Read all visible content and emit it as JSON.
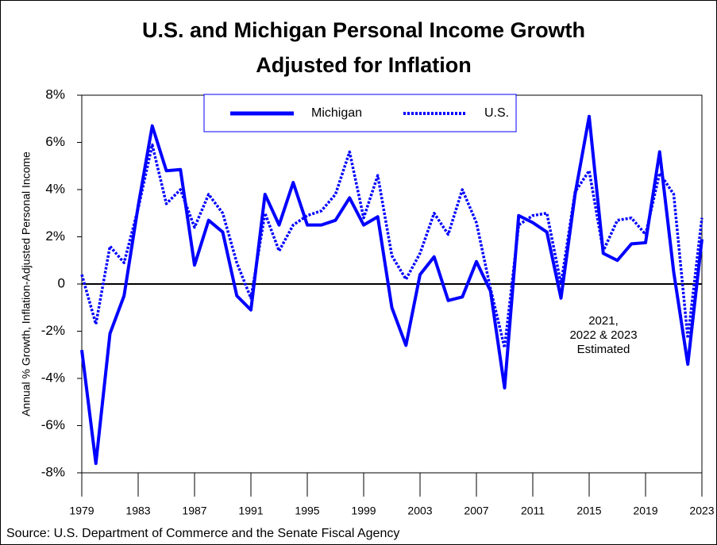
{
  "chart_data": {
    "type": "line",
    "title": "U.S. and Michigan Personal Income Growth",
    "subtitle": "Adjusted for Inflation",
    "y_label": "Annual % Growth, Inflation-Adjusted Personal Income",
    "source": "Source:  U.S. Department of Commerce and the Senate Fiscal Agency",
    "annotation": [
      "2021,",
      "2022 & 2023",
      "Estimated"
    ],
    "x": [
      1979,
      1980,
      1981,
      1982,
      1983,
      1984,
      1985,
      1986,
      1987,
      1988,
      1989,
      1990,
      1991,
      1992,
      1993,
      1994,
      1995,
      1996,
      1997,
      1998,
      1999,
      2000,
      2001,
      2002,
      2003,
      2004,
      2005,
      2006,
      2007,
      2008,
      2009,
      2010,
      2011,
      2012,
      2013,
      2014,
      2015,
      2016,
      2017,
      2018,
      2019,
      2020,
      2021,
      2022,
      2023
    ],
    "series": [
      {
        "name": "Michigan",
        "color": "#0000ff",
        "dash": false,
        "values": [
          -2.8,
          -7.6,
          -2.1,
          -0.5,
          3.3,
          6.7,
          4.8,
          4.85,
          0.8,
          2.7,
          2.2,
          -0.5,
          -1.1,
          3.8,
          2.5,
          4.3,
          2.5,
          2.5,
          2.7,
          3.65,
          2.5,
          2.85,
          -1.0,
          -2.6,
          0.4,
          1.15,
          -0.7,
          -0.55,
          0.95,
          -0.3,
          -4.4,
          2.9,
          2.6,
          2.2,
          -0.6,
          3.8,
          7.1,
          1.3,
          1.0,
          1.7,
          1.75,
          5.6,
          0.5,
          -3.4,
          1.9
        ]
      },
      {
        "name": "U.S.",
        "color": "#0000ff",
        "dash": true,
        "values": [
          0.4,
          -1.7,
          1.6,
          0.9,
          3.2,
          5.9,
          3.4,
          4.0,
          2.4,
          3.8,
          3.0,
          0.9,
          -0.6,
          3.0,
          1.4,
          2.5,
          2.9,
          3.1,
          3.8,
          5.6,
          2.8,
          4.6,
          1.2,
          0.2,
          1.3,
          3.0,
          2.1,
          4.0,
          2.6,
          -0.2,
          -2.7,
          2.5,
          2.9,
          3.0,
          0.0,
          3.9,
          4.8,
          1.4,
          2.7,
          2.8,
          2.1,
          4.7,
          3.8,
          -2.3,
          2.8
        ]
      }
    ],
    "xlim": [
      1979,
      2023
    ],
    "xticks": [
      1979,
      1983,
      1987,
      1991,
      1995,
      1999,
      2003,
      2007,
      2011,
      2015,
      2019,
      2023
    ],
    "ylim": [
      -8,
      8
    ],
    "yticks": [
      {
        "value": -8,
        "label": "-8%"
      },
      {
        "value": -6,
        "label": "-6%"
      },
      {
        "value": -4,
        "label": "-4%"
      },
      {
        "value": -2,
        "label": "-2%"
      },
      0,
      {
        "value": 2,
        "label": "2%"
      },
      {
        "value": 4,
        "label": "4%"
      },
      {
        "value": 6,
        "label": "6%"
      },
      {
        "value": 8,
        "label": "8%"
      }
    ],
    "grid": false
  }
}
